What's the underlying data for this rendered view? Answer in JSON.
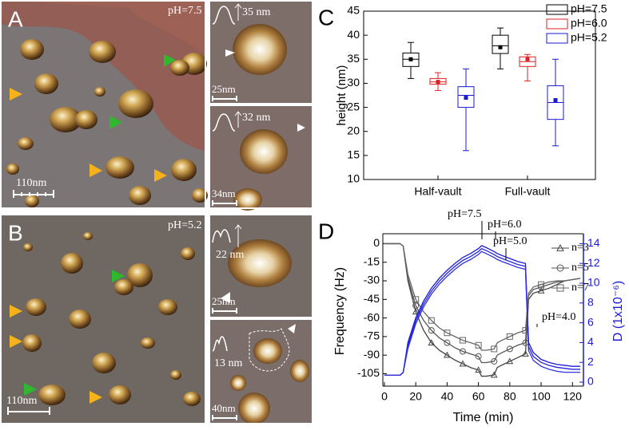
{
  "images": [
    {
      "label": "A",
      "ph": "pH=7.5",
      "scale": "110nm"
    },
    {
      "label": "B",
      "ph": "pH=5.2",
      "scale": "110nm"
    }
  ],
  "insets": [
    {
      "height": "35 nm",
      "scale": "25nm"
    },
    {
      "height": "32 nm",
      "scale": "34nm"
    },
    {
      "height": "22 nm",
      "scale": "25nm"
    },
    {
      "height": "13 nm",
      "scale": "40nm"
    }
  ],
  "chart_data": [
    {
      "type": "box",
      "panel": "C",
      "y_label": "height (nm)",
      "categories": [
        "Half-vault",
        "Full-vault"
      ],
      "ylim": [
        10,
        45
      ],
      "yticks": [
        10,
        15,
        20,
        25,
        30,
        35,
        40,
        45
      ],
      "legend": "top-right",
      "series": [
        {
          "name": "pH=7.5",
          "color": "#000000",
          "min": [
            31,
            33
          ],
          "q1": [
            33.5,
            36.2
          ],
          "median": [
            35,
            37.8
          ],
          "q3": [
            36.3,
            40
          ],
          "max": [
            38.5,
            41.5
          ],
          "mean": [
            35,
            37.5
          ]
        },
        {
          "name": "pH=6.0",
          "color": "#e02020",
          "min": [
            28.5,
            30.5
          ],
          "q1": [
            29.8,
            33.5
          ],
          "median": [
            30.3,
            34.5
          ],
          "q3": [
            31,
            35.5
          ],
          "max": [
            32.2,
            36
          ],
          "mean": [
            30.3,
            35
          ]
        },
        {
          "name": "pH=5.2",
          "color": "#1a1ad8",
          "min": [
            16,
            17
          ],
          "q1": [
            25,
            22.5
          ],
          "median": [
            27.5,
            26
          ],
          "q3": [
            29.3,
            29.5
          ],
          "max": [
            33,
            35
          ],
          "mean": [
            27,
            26.5
          ]
        }
      ]
    },
    {
      "type": "line",
      "panel": "D",
      "x_label": "Time (min)",
      "y_label": "Frequency (Hz)",
      "y2_label": "D (1x10⁻⁶)",
      "xlim": [
        -1,
        127
      ],
      "xticks": [
        0,
        20,
        40,
        60,
        80,
        100,
        120
      ],
      "ylim": [
        -115,
        8
      ],
      "yticks": [
        0,
        -15,
        -30,
        -45,
        -60,
        -75,
        -90,
        -105
      ],
      "y2lim": [
        -0.4,
        15
      ],
      "y2ticks": [
        0,
        2,
        4,
        6,
        8,
        10,
        12,
        14
      ],
      "annotations": [
        "pH=7.5",
        "pH=6.0",
        "pH=5.0",
        "pH=4.0"
      ],
      "x": [
        0,
        5,
        10,
        12,
        15,
        20,
        25,
        30,
        35,
        40,
        45,
        50,
        55,
        60,
        62,
        65,
        70,
        72,
        75,
        80,
        85,
        90,
        92,
        95,
        100,
        105,
        110,
        115,
        120,
        125
      ],
      "series": [
        {
          "name": "n=3",
          "color": "#444444",
          "marker": "triangle",
          "values": [
            0,
            0,
            0,
            -2,
            -30,
            -55,
            -70,
            -80,
            -86,
            -90,
            -94,
            -97,
            -100,
            -102,
            -107,
            -107,
            -106,
            -100,
            -98,
            -95,
            -92,
            -89,
            -45,
            -40,
            -38,
            -36,
            -33,
            -30,
            -29,
            -28
          ]
        },
        {
          "name": "n=5",
          "color": "#555555",
          "marker": "circle",
          "values": [
            0,
            0,
            0,
            -2,
            -28,
            -50,
            -62,
            -70,
            -76,
            -80,
            -84,
            -87,
            -89,
            -91,
            -96,
            -96,
            -95,
            -90,
            -88,
            -85,
            -82,
            -80,
            -42,
            -37,
            -35,
            -33,
            -31,
            -30,
            -29,
            -28
          ]
        },
        {
          "name": "n=7",
          "color": "#666666",
          "marker": "square",
          "values": [
            0,
            0,
            0,
            -2,
            -25,
            -45,
            -55,
            -62,
            -68,
            -72,
            -75,
            -78,
            -80,
            -82,
            -86,
            -86,
            -85,
            -80,
            -78,
            -75,
            -72,
            -70,
            -40,
            -35,
            -33,
            -31,
            -30,
            -30,
            -29,
            -28
          ]
        },
        {
          "color": "#1a1ad8",
          "axis": "y2",
          "values": [
            0.7,
            0.7,
            0.7,
            1,
            4,
            6.5,
            8.2,
            9.5,
            10.5,
            11.3,
            12,
            12.6,
            13,
            13.5,
            13.8,
            13.6,
            13.2,
            13,
            12.8,
            12.5,
            12.2,
            12,
            4,
            3,
            2.3,
            2,
            1.8,
            1.7,
            1.6,
            1.6
          ]
        },
        {
          "color": "#2424dc",
          "axis": "y2",
          "values": [
            0.7,
            0.7,
            0.7,
            1,
            3.7,
            6.2,
            7.9,
            9.2,
            10.2,
            11,
            11.7,
            12.3,
            12.7,
            13.2,
            13.5,
            13.3,
            12.9,
            12.7,
            12.5,
            12.2,
            11.9,
            11.7,
            3.6,
            2.6,
            2,
            1.7,
            1.5,
            1.4,
            1.3,
            1.3
          ]
        },
        {
          "color": "#3030e0",
          "axis": "y2",
          "values": [
            0.7,
            0.7,
            0.7,
            1,
            3.4,
            5.9,
            7.6,
            8.9,
            9.9,
            10.7,
            11.4,
            12,
            12.4,
            12.9,
            13.2,
            13,
            12.6,
            12.4,
            12.2,
            11.9,
            11.6,
            11.4,
            3.2,
            2.2,
            1.6,
            1.3,
            1.1,
            1,
            1,
            1
          ]
        }
      ]
    }
  ]
}
